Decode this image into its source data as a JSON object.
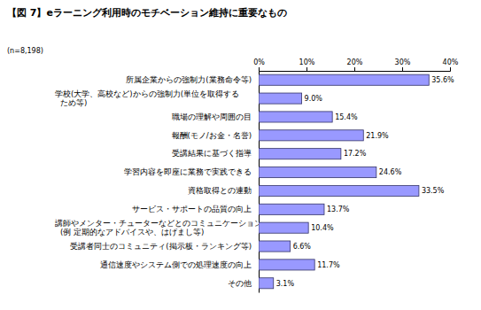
{
  "chart_data": {
    "type": "bar",
    "orientation": "horizontal",
    "title": "【図 7】eラーニング利用時のモチベーション維持に重要なもの",
    "subtitle": "(n=8,198)",
    "categories": [
      "所属企業からの強制力(業務命令等)",
      "学校(大学、高校など)からの強制力(単位を取得する\nため等)",
      "職場の理解や周囲の目",
      "報酬(モノ/お金・名誉)",
      "受講結果に基づく指導",
      "学習内容を即座に業務で実践できる",
      "資格取得との連動",
      "サービス・サポートの品質の向上",
      "講師やメンター・チューターなどとのコミュニケーション\n(例 定期的なアドバイスや、はげまし等)",
      "受講者同士のコミュニティ(掲示板・ランキング等)",
      "通信速度やシステム側での処理速度の向上",
      "その他"
    ],
    "values": [
      35.6,
      9.0,
      15.4,
      21.9,
      17.2,
      24.6,
      33.5,
      13.7,
      10.4,
      6.6,
      11.7,
      3.1
    ],
    "value_labels": [
      "35.6%",
      "9.0%",
      "15.4%",
      "21.9%",
      "17.2%",
      "24.6%",
      "33.5%",
      "13.7%",
      "10.4%",
      "6.6%",
      "11.7%",
      "3.1%"
    ],
    "data_labels": true,
    "color": "#9999ff",
    "xlim": [
      0,
      40
    ],
    "xticks": [
      {
        "value": 0,
        "label": "0%"
      },
      {
        "value": 10,
        "label": "10%"
      },
      {
        "value": 20,
        "label": "20%"
      },
      {
        "value": 30,
        "label": "30%"
      },
      {
        "value": 40,
        "label": "40%"
      }
    ],
    "grid": false
  }
}
